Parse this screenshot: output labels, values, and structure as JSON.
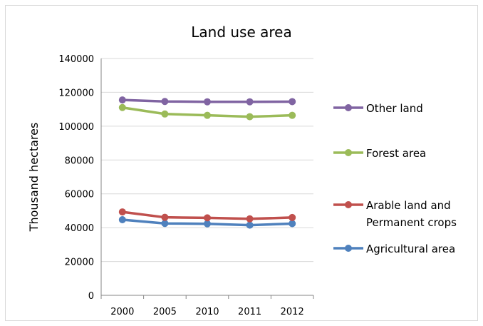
{
  "chart_data": {
    "type": "line",
    "title": "Land use area",
    "xlabel": "",
    "ylabel": "Thousand hectares",
    "categories": [
      "2000",
      "2005",
      "2010",
      "2011",
      "2012"
    ],
    "ylim": [
      0,
      140000
    ],
    "yticks": [
      0,
      20000,
      40000,
      60000,
      80000,
      100000,
      120000,
      140000
    ],
    "grid": true,
    "legend_position": "right",
    "series": [
      {
        "name": "Other land",
        "color": "#8064a2",
        "values": [
          115500,
          114600,
          114400,
          114400,
          114500
        ]
      },
      {
        "name": "Forest area",
        "color": "#9bbb59",
        "values": [
          111000,
          107200,
          106400,
          105600,
          106400
        ]
      },
      {
        "name": "Arable land and Permanent crops",
        "color": "#c0504d",
        "values": [
          49300,
          46100,
          45800,
          45200,
          46000
        ]
      },
      {
        "name": "Agricultural area",
        "color": "#4f81bd",
        "values": [
          44700,
          42500,
          42300,
          41500,
          42400
        ]
      }
    ],
    "legend": [
      {
        "lines": [
          "Other land"
        ],
        "series": 0
      },
      {
        "lines": [
          "Forest area"
        ],
        "series": 1
      },
      {
        "lines": [
          "Arable land and",
          "Permanent crops"
        ],
        "series": 2
      },
      {
        "lines": [
          "Agricultural area"
        ],
        "series": 3
      }
    ]
  }
}
